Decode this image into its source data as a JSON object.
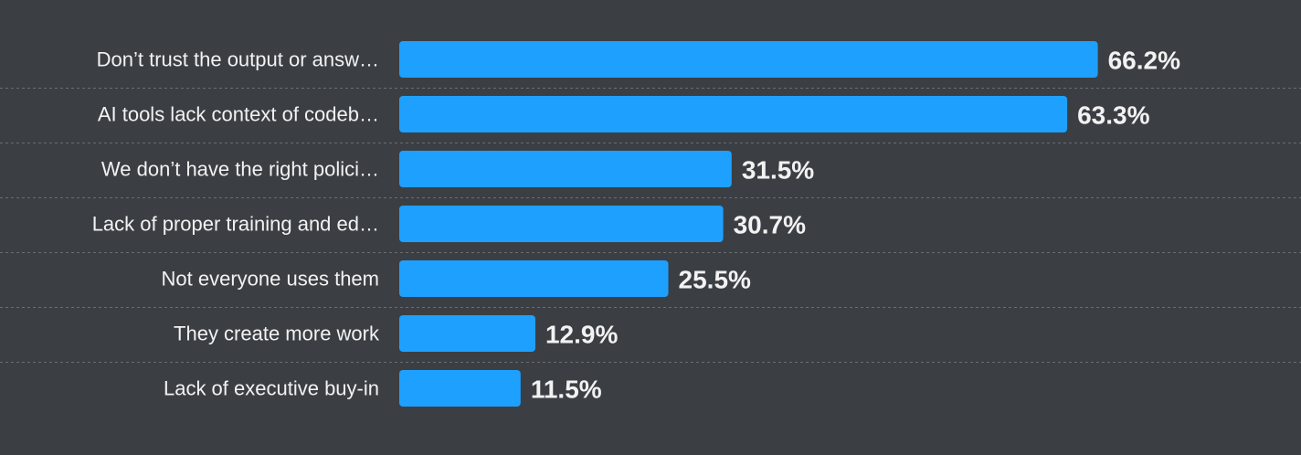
{
  "colors": {
    "background": "#3b3f44",
    "bar": "#1ea0ff",
    "text": "#f2f2f2",
    "separator": "#6a6e73"
  },
  "chart_data": {
    "type": "bar",
    "orientation": "horizontal",
    "categories": [
      "Don’t trust the output or answ…",
      "AI tools lack context of codeb…",
      "We don’t have the right polici…",
      "Lack of proper training and ed…",
      "Not everyone uses them",
      "They create more work",
      "Lack of executive buy-in"
    ],
    "values": [
      66.2,
      63.3,
      31.5,
      30.7,
      25.5,
      12.9,
      11.5
    ],
    "value_labels": [
      "66.2%",
      "63.3%",
      "31.5%",
      "30.7%",
      "25.5%",
      "12.9%",
      "11.5%"
    ],
    "unit": "%",
    "grid": false,
    "legend": "none"
  }
}
